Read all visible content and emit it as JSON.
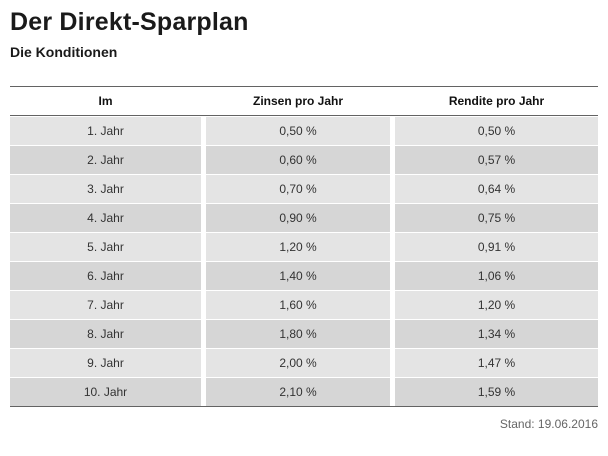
{
  "page": {
    "title": "Der Direkt-Sparplan",
    "subtitle": "Die Konditionen",
    "stand": "Stand: 19.06.2016"
  },
  "colors": {
    "row_light": "#e4e4e4",
    "row_dark": "#d6d6d6",
    "table_border": "#636363",
    "heading_text": "#1a1a1a"
  },
  "table": {
    "columns": [
      "Im",
      "Zinsen pro Jahr",
      "Rendite pro Jahr"
    ],
    "rows": [
      {
        "jahr": "1. Jahr",
        "zinsen": "0,50 %",
        "rendite": "0,50 %"
      },
      {
        "jahr": "2. Jahr",
        "zinsen": "0,60 %",
        "rendite": "0,57 %"
      },
      {
        "jahr": "3. Jahr",
        "zinsen": "0,70 %",
        "rendite": "0,64 %"
      },
      {
        "jahr": "4. Jahr",
        "zinsen": "0,90 %",
        "rendite": "0,75 %"
      },
      {
        "jahr": "5. Jahr",
        "zinsen": "1,20 %",
        "rendite": "0,91 %"
      },
      {
        "jahr": "6. Jahr",
        "zinsen": "1,40 %",
        "rendite": "1,06 %"
      },
      {
        "jahr": "7. Jahr",
        "zinsen": "1,60 %",
        "rendite": "1,20 %"
      },
      {
        "jahr": "8. Jahr",
        "zinsen": "1,80 %",
        "rendite": "1,34 %"
      },
      {
        "jahr": "9. Jahr",
        "zinsen": "2,00 %",
        "rendite": "1,47 %"
      },
      {
        "jahr": "10. Jahr",
        "zinsen": "2,10 %",
        "rendite": "1,59 %"
      }
    ]
  }
}
